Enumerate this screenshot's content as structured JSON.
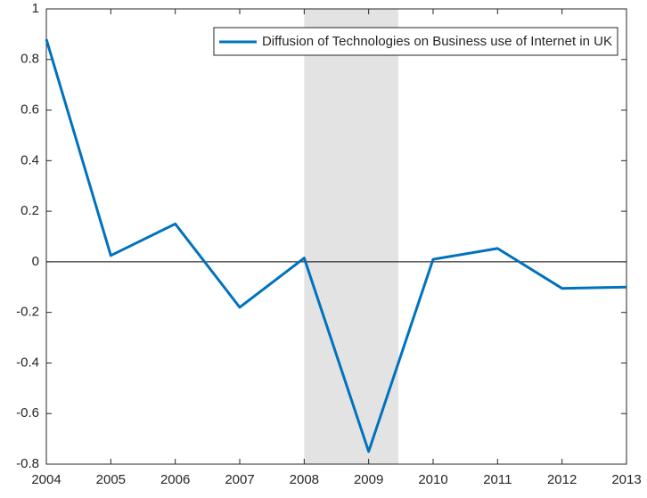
{
  "chart_data": {
    "type": "line",
    "x": [
      2004,
      2005,
      2006,
      2007,
      2008,
      2009,
      2010,
      2011,
      2012,
      2013
    ],
    "series": [
      {
        "name": "Diffusion of Technologies on Business use of Internet in UK",
        "color": "#0072bd",
        "values": [
          0.88,
          0.025,
          0.15,
          -0.18,
          0.015,
          -0.75,
          0.01,
          0.053,
          -0.105,
          -0.1
        ]
      }
    ],
    "xlim": [
      2004,
      2013
    ],
    "xticks": [
      2004,
      2005,
      2006,
      2007,
      2008,
      2009,
      2010,
      2011,
      2012,
      2013
    ],
    "ylim": [
      -0.8,
      1
    ],
    "yticks": [
      -0.8,
      -0.6,
      -0.4,
      -0.2,
      0,
      0.2,
      0.4,
      0.6,
      0.8,
      1
    ],
    "shaded_x": [
      2008,
      2009.46
    ],
    "hline": 0,
    "legend": "top-right"
  }
}
